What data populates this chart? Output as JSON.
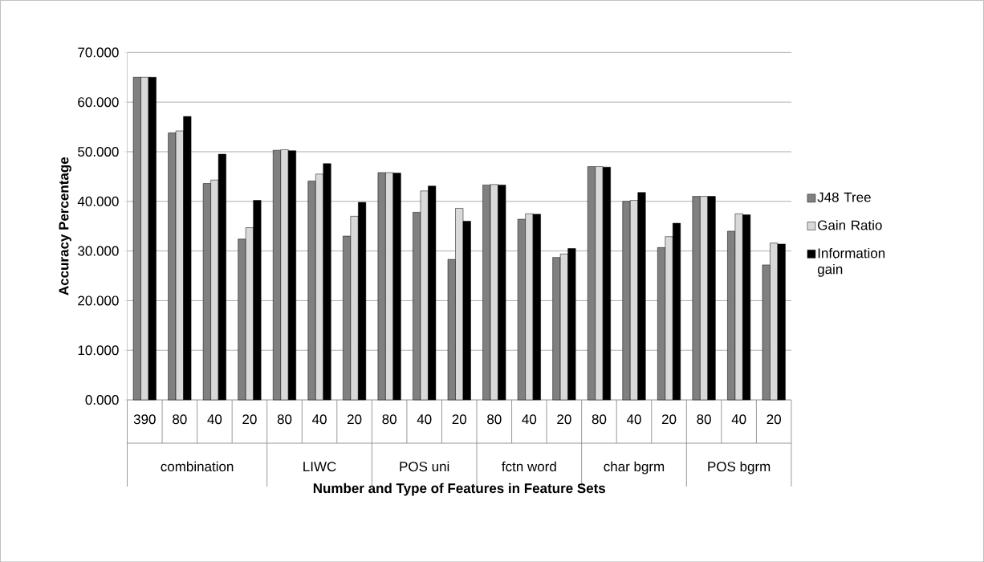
{
  "chart_data": {
    "type": "bar",
    "xlabel": "Number and Type of Features in Feature Sets",
    "ylabel": "Accuracy Percentage",
    "categories": [
      "390",
      "80",
      "40",
      "20",
      "80",
      "40",
      "20",
      "80",
      "40",
      "20",
      "80",
      "40",
      "20",
      "80",
      "40",
      "20",
      "80",
      "40",
      "20"
    ],
    "annotations": [
      "combination",
      "LIWC",
      "POS uni",
      "fctn word",
      "char bgrm",
      "POS bgrm"
    ],
    "series": [
      {
        "name": "J48 Tree",
        "color": "#808080",
        "values": [
          65.0,
          53.8,
          43.6,
          32.4,
          50.3,
          44.1,
          33.0,
          45.8,
          37.8,
          28.3,
          43.3,
          36.4,
          28.7,
          47.0,
          40.0,
          30.7,
          41.0,
          34.0,
          27.2
        ]
      },
      {
        "name": "Gain Ratio",
        "color": "#d9d9d9",
        "values": [
          65.0,
          54.2,
          44.3,
          34.7,
          50.4,
          45.5,
          37.0,
          45.8,
          42.1,
          38.6,
          43.4,
          37.5,
          29.4,
          47.0,
          40.2,
          32.9,
          41.0,
          37.5,
          31.6
        ]
      },
      {
        "name": "Information gain",
        "color": "#000000",
        "values": [
          65.0,
          57.1,
          49.5,
          40.2,
          50.2,
          47.6,
          39.8,
          45.7,
          43.1,
          36.0,
          43.3,
          37.4,
          30.5,
          46.9,
          41.8,
          35.6,
          41.0,
          37.3,
          31.4
        ]
      }
    ],
    "ylim": [
      0,
      70
    ],
    "yticks": [
      {
        "value": 0,
        "label": "0.000"
      },
      {
        "value": 10,
        "label": "10.000"
      },
      {
        "value": 20,
        "label": "20.000"
      },
      {
        "value": 30,
        "label": "30.000"
      },
      {
        "value": 40,
        "label": "40.000"
      },
      {
        "value": 50,
        "label": "50.000"
      },
      {
        "value": 60,
        "label": "60.000"
      },
      {
        "value": 70,
        "label": "70.000"
      }
    ],
    "grid": "y",
    "legend": "right"
  }
}
